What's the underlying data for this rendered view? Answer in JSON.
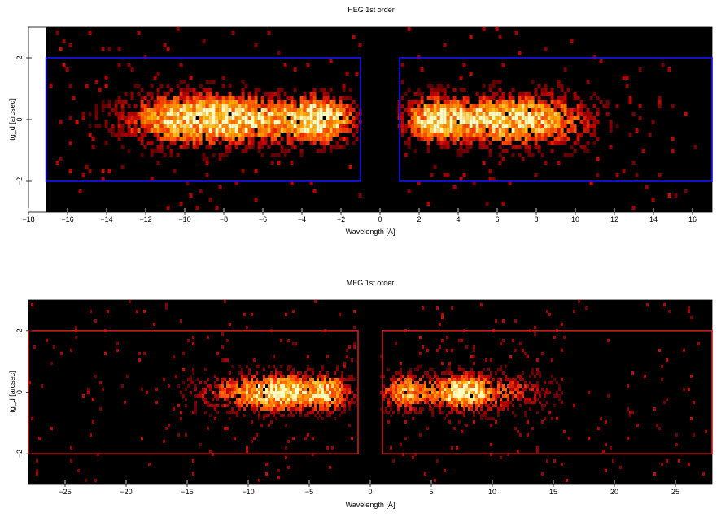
{
  "chart_data": [
    {
      "type": "heatmap",
      "title": "HEG 1st order",
      "xlabel": "Wavelength [Å]",
      "ylabel": "tg_d [arcsec]",
      "xlim": [
        -18,
        17
      ],
      "ylim": [
        -3,
        3
      ],
      "x_ticks": [
        -18,
        -16,
        -14,
        -12,
        -10,
        -8,
        -6,
        -4,
        -2,
        0,
        2,
        4,
        6,
        8,
        10,
        12,
        14,
        16
      ],
      "y_ticks": [
        -2,
        0,
        2
      ],
      "colormap": "heat",
      "box_color": "#1414ff",
      "no_data_x_below": -17.1,
      "regions": [
        {
          "x": [
            -17.1,
            -1.0
          ],
          "y": [
            -2.0,
            2.0
          ]
        },
        {
          "x": [
            1.0,
            17.0
          ],
          "y": [
            -2.0,
            2.0
          ]
        }
      ],
      "emission_clumps": [
        {
          "x": -7.5,
          "y": 0.0,
          "sx": 2.6,
          "sy": 0.55,
          "peak": 0.95
        },
        {
          "x": -3.0,
          "y": 0.0,
          "sx": 1.2,
          "sy": 0.5,
          "peak": 0.95
        },
        {
          "x": -11.0,
          "y": 0.0,
          "sx": 2.0,
          "sy": 0.6,
          "peak": 0.45
        },
        {
          "x": 3.0,
          "y": 0.0,
          "sx": 1.3,
          "sy": 0.5,
          "peak": 1.0
        },
        {
          "x": 6.5,
          "y": 0.0,
          "sx": 1.6,
          "sy": 0.55,
          "peak": 0.95
        },
        {
          "x": 9.5,
          "y": 0.0,
          "sx": 1.5,
          "sy": 0.6,
          "peak": 0.45
        }
      ]
    },
    {
      "type": "heatmap",
      "title": "MEG 1st order",
      "xlabel": "Wavelength [Å]",
      "ylabel": "tg_d [arcsec]",
      "xlim": [
        -28,
        28
      ],
      "ylim": [
        -3,
        3
      ],
      "x_ticks": [
        -25,
        -20,
        -15,
        -10,
        -5,
        0,
        5,
        10,
        15,
        20,
        25
      ],
      "y_ticks": [
        -2,
        0,
        2
      ],
      "colormap": "heat",
      "box_color": "#c81e1e",
      "regions": [
        {
          "x": [
            -28,
            -1.0
          ],
          "y": [
            -2.0,
            2.0
          ]
        },
        {
          "x": [
            1.0,
            28
          ],
          "y": [
            -2.0,
            2.0
          ]
        }
      ],
      "emission_clumps": [
        {
          "x": -7.5,
          "y": 0.0,
          "sx": 1.8,
          "sy": 0.4,
          "peak": 1.0
        },
        {
          "x": -3.5,
          "y": 0.0,
          "sx": 1.4,
          "sy": 0.4,
          "peak": 0.85
        },
        {
          "x": -11.5,
          "y": 0.0,
          "sx": 2.5,
          "sy": 0.45,
          "peak": 0.45
        },
        {
          "x": 3.0,
          "y": 0.0,
          "sx": 1.4,
          "sy": 0.4,
          "peak": 0.8
        },
        {
          "x": 7.5,
          "y": 0.0,
          "sx": 1.6,
          "sy": 0.4,
          "peak": 1.0
        },
        {
          "x": 11.5,
          "y": 0.0,
          "sx": 2.5,
          "sy": 0.45,
          "peak": 0.4
        }
      ]
    }
  ]
}
